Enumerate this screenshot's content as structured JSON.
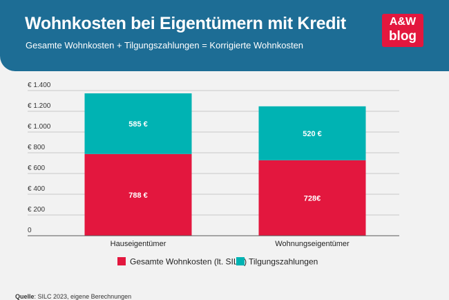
{
  "header": {
    "title": "Wohnkosten bei Eigentümern mit Kredit",
    "subtitle": "Gesamte Wohnkosten + Tilgungszahlungen = Korrigierte Wohnkosten",
    "logo_line1": "A&W",
    "logo_line2": "blog"
  },
  "source": {
    "label": "Quelle",
    "text": ": SILC 2023, eigene Berechnungen"
  },
  "colors": {
    "banner": "#1d6d95",
    "series1": "#e3173e",
    "series2": "#00b3b3",
    "gridline": "#c8c8c8"
  },
  "chart_data": {
    "type": "bar",
    "stacked": true,
    "title": "Wohnkosten bei Eigentümern mit Kredit",
    "categories": [
      "Hauseigentümer",
      "Wohnungseigentümer"
    ],
    "series": [
      {
        "name": "Gesamte Wohnkosten (lt. SILC)",
        "values": [
          788,
          728
        ],
        "labels": [
          "788 €",
          "728€"
        ],
        "color": "#e3173e"
      },
      {
        "name": "Tilgungszahlungen",
        "values": [
          585,
          520
        ],
        "labels": [
          "585 €",
          "520 €"
        ],
        "color": "#00b3b3"
      }
    ],
    "yticks": [
      0,
      200,
      400,
      600,
      800,
      1000,
      1200,
      1400
    ],
    "ytick_labels": [
      "0",
      "€ 200",
      "€ 400",
      "€ 600",
      "€ 800",
      "€ 1.000",
      "€ 1.200",
      "€ 1.400"
    ],
    "ylim": [
      0,
      1400
    ],
    "grid": true,
    "legend_position": "bottom"
  }
}
